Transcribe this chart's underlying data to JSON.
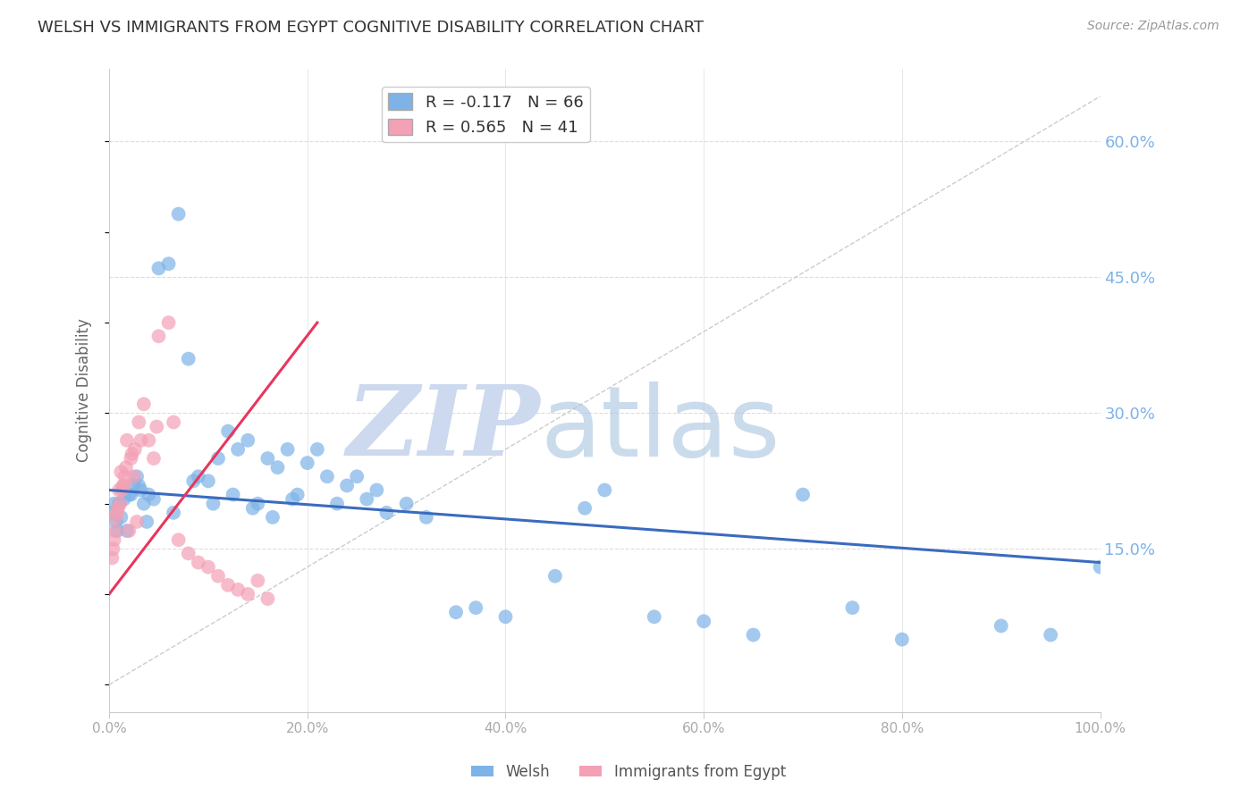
{
  "title": "WELSH VS IMMIGRANTS FROM EGYPT COGNITIVE DISABILITY CORRELATION CHART",
  "source": "Source: ZipAtlas.com",
  "ylabel": "Cognitive Disability",
  "xlim": [
    0.0,
    100.0
  ],
  "ylim": [
    -3.0,
    68.0
  ],
  "yticks": [
    15.0,
    30.0,
    45.0,
    60.0
  ],
  "xticks": [
    0.0,
    20.0,
    40.0,
    60.0,
    80.0,
    100.0
  ],
  "welsh_R": -0.117,
  "welsh_N": 66,
  "egypt_R": 0.565,
  "egypt_N": 41,
  "welsh_color": "#7eb3e8",
  "egypt_color": "#f4a0b5",
  "welsh_line_color": "#3a6bbf",
  "egypt_line_color": "#e8365d",
  "ref_line_color": "#cccccc",
  "background_color": "#ffffff",
  "grid_color": "#dddddd",
  "title_color": "#333333",
  "axis_label_color": "#666666",
  "right_tick_color": "#7eb3e8",
  "xtick_color": "#aaaaaa",
  "welsh_x": [
    1.0,
    1.5,
    2.0,
    2.5,
    3.0,
    3.5,
    4.0,
    5.0,
    6.0,
    7.0,
    8.0,
    9.0,
    10.0,
    11.0,
    12.0,
    13.0,
    14.0,
    15.0,
    16.0,
    17.0,
    18.0,
    19.0,
    20.0,
    21.0,
    22.0,
    23.0,
    24.0,
    25.0,
    26.0,
    27.0,
    28.0,
    30.0,
    32.0,
    35.0,
    37.0,
    40.0,
    45.0,
    48.0,
    50.0,
    55.0,
    60.0,
    65.0,
    70.0,
    75.0,
    80.0,
    90.0,
    95.0,
    100.0,
    0.3,
    0.5,
    0.7,
    0.8,
    1.2,
    1.8,
    2.2,
    2.8,
    3.2,
    3.8,
    4.5,
    6.5,
    8.5,
    10.5,
    12.5,
    14.5,
    16.5,
    18.5
  ],
  "welsh_y": [
    20.0,
    20.5,
    21.0,
    22.0,
    22.0,
    20.0,
    21.0,
    46.0,
    46.5,
    52.0,
    36.0,
    23.0,
    22.5,
    25.0,
    28.0,
    26.0,
    27.0,
    20.0,
    25.0,
    24.0,
    26.0,
    21.0,
    24.5,
    26.0,
    23.0,
    20.0,
    22.0,
    23.0,
    20.5,
    21.5,
    19.0,
    20.0,
    18.5,
    8.0,
    8.5,
    7.5,
    12.0,
    19.5,
    21.5,
    7.5,
    7.0,
    5.5,
    21.0,
    8.5,
    5.0,
    6.5,
    5.5,
    13.0,
    19.0,
    20.0,
    18.0,
    17.0,
    18.5,
    17.0,
    21.0,
    23.0,
    21.5,
    18.0,
    20.5,
    19.0,
    22.5,
    20.0,
    21.0,
    19.5,
    18.5,
    20.5
  ],
  "egypt_x": [
    0.3,
    0.5,
    0.7,
    0.8,
    1.0,
    1.2,
    1.4,
    1.6,
    1.8,
    2.0,
    2.2,
    2.5,
    2.8,
    3.0,
    3.5,
    4.0,
    4.5,
    5.0,
    6.0,
    7.0,
    8.0,
    9.0,
    10.0,
    11.0,
    12.0,
    13.0,
    14.0,
    15.0,
    16.0,
    0.4,
    0.6,
    0.9,
    1.1,
    1.3,
    1.5,
    1.7,
    2.3,
    2.6,
    3.2,
    4.8,
    6.5
  ],
  "egypt_y": [
    14.0,
    16.0,
    18.5,
    19.0,
    21.5,
    23.5,
    22.0,
    23.0,
    27.0,
    17.0,
    25.0,
    23.0,
    18.0,
    29.0,
    31.0,
    27.0,
    25.0,
    38.5,
    40.0,
    16.0,
    14.5,
    13.5,
    13.0,
    12.0,
    11.0,
    10.5,
    10.0,
    11.5,
    9.5,
    15.0,
    17.0,
    19.5,
    20.0,
    21.5,
    22.0,
    24.0,
    25.5,
    26.0,
    27.0,
    28.5,
    29.0
  ],
  "egypt_line_x_start": 0.0,
  "egypt_line_x_end": 21.0,
  "welsh_line_x_start": 0.0,
  "welsh_line_x_end": 100.0,
  "welsh_line_y_start": 21.5,
  "welsh_line_y_end": 13.5,
  "egypt_line_y_start": 10.0,
  "egypt_line_y_end": 40.0
}
